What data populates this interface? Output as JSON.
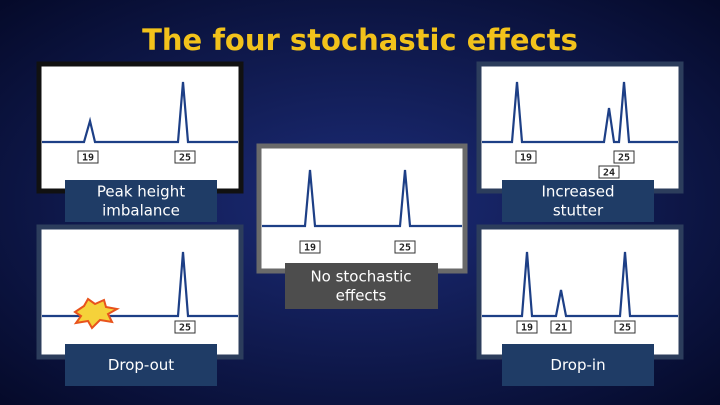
{
  "title": "The four stochastic effects",
  "panels": [
    {
      "caption": [
        "Peak height",
        "imbalance"
      ],
      "alleles": [
        "19",
        "25"
      ]
    },
    {
      "caption": [
        "Increased",
        "stutter"
      ],
      "alleles": [
        "19",
        "24",
        "25"
      ]
    },
    {
      "caption": [
        "No stochastic",
        "effects"
      ],
      "alleles": [
        "19",
        "25"
      ]
    },
    {
      "caption": [
        "Drop-out"
      ],
      "alleles": [
        "25"
      ]
    },
    {
      "caption": [
        "Drop-in"
      ],
      "alleles": [
        "19",
        "21",
        "25"
      ]
    }
  ]
}
